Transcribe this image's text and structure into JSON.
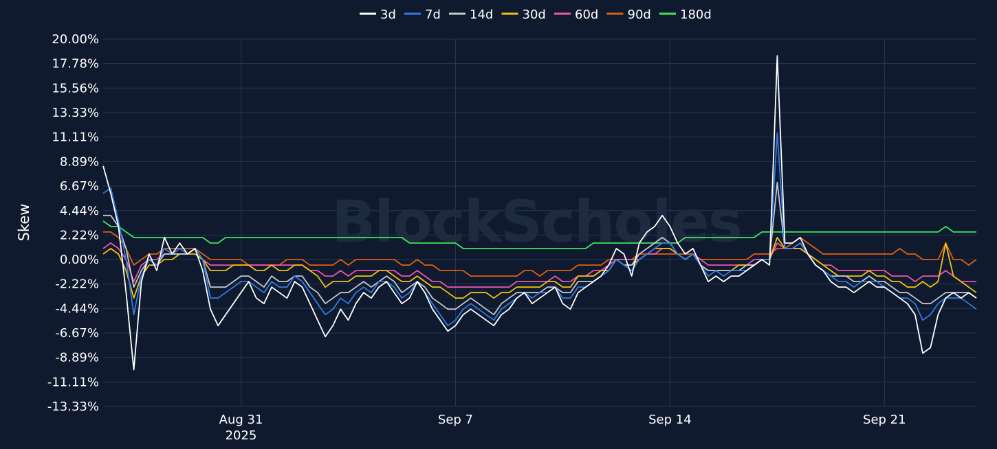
{
  "chart_data": {
    "type": "line",
    "ylabel": "Skew",
    "watermark": "BlockScholes",
    "ylim": [
      -13.33,
      20.0
    ],
    "xlim": [
      "2025-08-26T12:00",
      "2025-09-24T00:00"
    ],
    "yticks": [
      {
        "value": 20.0,
        "label": "20.00%"
      },
      {
        "value": 17.78,
        "label": "17.78%"
      },
      {
        "value": 15.56,
        "label": "15.56%"
      },
      {
        "value": 13.33,
        "label": "13.33%"
      },
      {
        "value": 11.11,
        "label": "11.11%"
      },
      {
        "value": 8.89,
        "label": "8.89%"
      },
      {
        "value": 6.67,
        "label": "6.67%"
      },
      {
        "value": 4.44,
        "label": "4.44%"
      },
      {
        "value": 2.22,
        "label": "2.22%"
      },
      {
        "value": 0.0,
        "label": "0.00%"
      },
      {
        "value": -2.22,
        "label": "-2.22%"
      },
      {
        "value": -4.44,
        "label": "-4.44%"
      },
      {
        "value": -6.67,
        "label": "-6.67%"
      },
      {
        "value": -8.89,
        "label": "-8.89%"
      },
      {
        "value": -11.11,
        "label": "-11.11%"
      },
      {
        "value": -13.33,
        "label": "-13.33%"
      }
    ],
    "xticks": [
      {
        "date": "2025-08-31",
        "label": "Aug 31",
        "sublabel": "2025"
      },
      {
        "date": "2025-09-07",
        "label": "Sep 7",
        "sublabel": ""
      },
      {
        "date": "2025-09-14",
        "label": "Sep 14",
        "sublabel": ""
      },
      {
        "date": "2025-09-21",
        "label": "Sep 21",
        "sublabel": ""
      }
    ],
    "grid": true,
    "legend_position": "top-center",
    "x": [
      "2025-08-26T12:00",
      "2025-08-26T18:00",
      "2025-08-27T00:00",
      "2025-08-27T06:00",
      "2025-08-27T12:00",
      "2025-08-27T18:00",
      "2025-08-28T00:00",
      "2025-08-28T06:00",
      "2025-08-28T12:00",
      "2025-08-28T18:00",
      "2025-08-29T00:00",
      "2025-08-29T06:00",
      "2025-08-29T12:00",
      "2025-08-29T18:00",
      "2025-08-30T00:00",
      "2025-08-30T06:00",
      "2025-08-30T12:00",
      "2025-08-30T18:00",
      "2025-08-31T00:00",
      "2025-08-31T06:00",
      "2025-08-31T12:00",
      "2025-08-31T18:00",
      "2025-09-01T00:00",
      "2025-09-01T06:00",
      "2025-09-01T12:00",
      "2025-09-01T18:00",
      "2025-09-02T00:00",
      "2025-09-02T06:00",
      "2025-09-02T12:00",
      "2025-09-02T18:00",
      "2025-09-03T00:00",
      "2025-09-03T06:00",
      "2025-09-03T12:00",
      "2025-09-03T18:00",
      "2025-09-04T00:00",
      "2025-09-04T06:00",
      "2025-09-04T12:00",
      "2025-09-04T18:00",
      "2025-09-05T00:00",
      "2025-09-05T06:00",
      "2025-09-05T12:00",
      "2025-09-05T18:00",
      "2025-09-06T00:00",
      "2025-09-06T06:00",
      "2025-09-06T12:00",
      "2025-09-06T18:00",
      "2025-09-07T00:00",
      "2025-09-07T06:00",
      "2025-09-07T12:00",
      "2025-09-07T18:00",
      "2025-09-08T00:00",
      "2025-09-08T06:00",
      "2025-09-08T12:00",
      "2025-09-08T18:00",
      "2025-09-09T00:00",
      "2025-09-09T06:00",
      "2025-09-09T12:00",
      "2025-09-09T18:00",
      "2025-09-10T00:00",
      "2025-09-10T06:00",
      "2025-09-10T12:00",
      "2025-09-10T18:00",
      "2025-09-11T00:00",
      "2025-09-11T06:00",
      "2025-09-11T12:00",
      "2025-09-11T18:00",
      "2025-09-12T00:00",
      "2025-09-12T06:00",
      "2025-09-12T12:00",
      "2025-09-12T18:00",
      "2025-09-13T00:00",
      "2025-09-13T06:00",
      "2025-09-13T12:00",
      "2025-09-13T18:00",
      "2025-09-14T00:00",
      "2025-09-14T06:00",
      "2025-09-14T12:00",
      "2025-09-14T18:00",
      "2025-09-15T00:00",
      "2025-09-15T06:00",
      "2025-09-15T12:00",
      "2025-09-15T18:00",
      "2025-09-16T00:00",
      "2025-09-16T06:00",
      "2025-09-16T12:00",
      "2025-09-16T18:00",
      "2025-09-17T00:00",
      "2025-09-17T06:00",
      "2025-09-17T12:00",
      "2025-09-17T18:00",
      "2025-09-18T00:00",
      "2025-09-18T06:00",
      "2025-09-18T12:00",
      "2025-09-18T18:00",
      "2025-09-19T00:00",
      "2025-09-19T06:00",
      "2025-09-19T12:00",
      "2025-09-19T18:00",
      "2025-09-20T00:00",
      "2025-09-20T06:00",
      "2025-09-20T12:00",
      "2025-09-20T18:00",
      "2025-09-21T00:00",
      "2025-09-21T06:00",
      "2025-09-21T12:00",
      "2025-09-21T18:00",
      "2025-09-22T00:00",
      "2025-09-22T06:00",
      "2025-09-22T12:00",
      "2025-09-22T18:00",
      "2025-09-23T00:00",
      "2025-09-23T06:00",
      "2025-09-23T12:00",
      "2025-09-23T18:00",
      "2025-09-24T00:00"
    ],
    "series": [
      {
        "name": "3d",
        "color": "#ffffff",
        "values": [
          8.5,
          6.0,
          3.0,
          -3.0,
          -10.0,
          -2.0,
          0.5,
          -1.0,
          2.0,
          0.5,
          1.5,
          0.5,
          1.0,
          -1.0,
          -4.5,
          -6.0,
          -5.0,
          -4.0,
          -3.0,
          -2.0,
          -3.5,
          -4.0,
          -2.5,
          -3.0,
          -3.5,
          -2.0,
          -2.5,
          -4.0,
          -5.5,
          -7.0,
          -6.0,
          -4.5,
          -5.5,
          -4.0,
          -3.0,
          -3.5,
          -2.5,
          -2.0,
          -3.0,
          -4.0,
          -3.5,
          -2.0,
          -3.0,
          -4.5,
          -5.5,
          -6.5,
          -6.0,
          -5.0,
          -4.5,
          -5.0,
          -5.5,
          -6.0,
          -5.0,
          -4.5,
          -3.5,
          -3.0,
          -4.0,
          -3.5,
          -3.0,
          -2.5,
          -4.0,
          -4.5,
          -3.0,
          -2.5,
          -2.0,
          -1.5,
          -0.5,
          1.0,
          0.5,
          -1.5,
          1.5,
          2.5,
          3.0,
          4.0,
          3.0,
          1.5,
          0.5,
          1.0,
          -0.5,
          -2.0,
          -1.5,
          -2.0,
          -1.5,
          -1.5,
          -1.0,
          -0.5,
          0.0,
          -0.5,
          18.5,
          1.5,
          1.5,
          2.0,
          0.5,
          -0.5,
          -1.0,
          -2.0,
          -2.5,
          -2.5,
          -3.0,
          -2.5,
          -2.0,
          -2.5,
          -2.5,
          -3.0,
          -3.5,
          -4.0,
          -5.0,
          -8.5,
          -8.0,
          -5.0,
          -3.5,
          -3.0,
          -3.5,
          -3.0,
          -3.5
        ]
      },
      {
        "name": "7d",
        "color": "#2f7be3",
        "values": [
          6.0,
          6.5,
          3.5,
          0.0,
          -5.0,
          -1.5,
          0.0,
          -0.5,
          1.0,
          0.5,
          1.0,
          0.5,
          1.0,
          0.0,
          -3.5,
          -3.5,
          -3.0,
          -2.5,
          -2.0,
          -2.0,
          -2.5,
          -3.0,
          -2.0,
          -2.5,
          -2.5,
          -1.5,
          -2.0,
          -3.0,
          -4.0,
          -5.0,
          -4.5,
          -3.5,
          -4.0,
          -3.0,
          -2.5,
          -3.0,
          -2.0,
          -2.0,
          -2.5,
          -3.5,
          -3.0,
          -2.0,
          -3.0,
          -4.0,
          -5.0,
          -6.0,
          -5.5,
          -4.5,
          -4.0,
          -4.5,
          -5.0,
          -5.5,
          -4.5,
          -4.0,
          -3.5,
          -3.0,
          -3.5,
          -3.0,
          -3.0,
          -2.5,
          -3.5,
          -3.5,
          -2.5,
          -2.5,
          -2.0,
          -1.5,
          -1.0,
          0.0,
          -0.5,
          -1.0,
          0.0,
          0.5,
          1.0,
          1.5,
          1.5,
          0.5,
          0.0,
          0.5,
          -0.5,
          -1.5,
          -1.0,
          -1.5,
          -1.0,
          -1.0,
          -1.0,
          -0.5,
          0.0,
          0.0,
          11.5,
          1.0,
          1.0,
          1.5,
          0.5,
          -0.5,
          -1.0,
          -1.5,
          -2.0,
          -2.0,
          -2.5,
          -2.0,
          -2.0,
          -2.0,
          -2.5,
          -3.0,
          -3.5,
          -3.5,
          -4.0,
          -5.5,
          -5.0,
          -4.0,
          -3.5,
          -3.5,
          -3.5,
          -4.0,
          -4.5
        ]
      },
      {
        "name": "14d",
        "color": "#c4c8d0",
        "values": [
          4.0,
          4.0,
          3.0,
          1.0,
          -2.5,
          -1.0,
          0.0,
          -0.5,
          0.5,
          0.5,
          0.5,
          0.5,
          1.0,
          0.0,
          -2.5,
          -2.5,
          -2.5,
          -2.0,
          -1.5,
          -1.5,
          -2.0,
          -2.5,
          -1.5,
          -2.0,
          -2.0,
          -1.5,
          -1.5,
          -2.5,
          -3.0,
          -4.0,
          -3.5,
          -3.0,
          -3.0,
          -2.5,
          -2.0,
          -2.5,
          -2.0,
          -1.5,
          -2.0,
          -3.0,
          -2.5,
          -2.0,
          -2.5,
          -3.5,
          -4.0,
          -4.5,
          -4.5,
          -4.0,
          -3.5,
          -4.0,
          -4.5,
          -5.0,
          -4.0,
          -3.5,
          -3.0,
          -3.0,
          -3.0,
          -3.0,
          -2.5,
          -2.5,
          -3.0,
          -3.0,
          -2.0,
          -2.0,
          -2.0,
          -1.5,
          -1.0,
          0.0,
          -0.5,
          -0.5,
          0.5,
          1.0,
          1.5,
          2.0,
          1.5,
          0.5,
          0.0,
          0.5,
          -0.5,
          -1.0,
          -1.0,
          -1.0,
          -1.0,
          -1.0,
          -0.5,
          -0.5,
          0.0,
          0.0,
          7.0,
          1.0,
          1.0,
          1.5,
          0.5,
          -0.5,
          -1.0,
          -1.5,
          -1.5,
          -1.5,
          -2.0,
          -2.0,
          -1.5,
          -2.0,
          -2.0,
          -2.5,
          -3.0,
          -3.0,
          -3.5,
          -4.0,
          -4.0,
          -3.5,
          -3.0,
          -3.0,
          -3.0,
          -3.0,
          -3.5
        ]
      },
      {
        "name": "30d",
        "color": "#f3c20e",
        "values": [
          0.5,
          1.0,
          0.5,
          -1.0,
          -3.5,
          -1.5,
          -0.5,
          -0.5,
          0.0,
          0.0,
          0.5,
          0.5,
          0.5,
          0.0,
          -1.0,
          -1.0,
          -1.0,
          -0.5,
          -0.5,
          -0.5,
          -1.0,
          -1.0,
          -0.5,
          -1.0,
          -1.0,
          -0.5,
          -0.5,
          -1.0,
          -1.5,
          -2.5,
          -2.0,
          -2.0,
          -2.0,
          -1.5,
          -1.5,
          -1.5,
          -1.0,
          -1.0,
          -1.5,
          -2.0,
          -2.0,
          -1.5,
          -2.0,
          -2.5,
          -2.5,
          -3.0,
          -3.5,
          -3.5,
          -3.0,
          -3.0,
          -3.0,
          -3.5,
          -3.0,
          -3.0,
          -2.5,
          -2.5,
          -2.5,
          -2.5,
          -2.0,
          -2.0,
          -2.5,
          -2.5,
          -1.5,
          -1.5,
          -1.5,
          -1.0,
          -1.0,
          0.0,
          -0.5,
          -0.5,
          0.0,
          0.5,
          1.0,
          1.0,
          1.0,
          0.5,
          0.0,
          0.5,
          -0.5,
          -1.0,
          -1.0,
          -1.0,
          -1.0,
          -0.5,
          -0.5,
          -0.5,
          0.0,
          0.0,
          2.0,
          1.0,
          1.0,
          1.0,
          0.5,
          0.0,
          -0.5,
          -1.0,
          -1.5,
          -1.5,
          -1.5,
          -1.5,
          -1.0,
          -1.5,
          -1.5,
          -2.0,
          -2.0,
          -2.5,
          -2.5,
          -2.0,
          -2.5,
          -2.0,
          1.5,
          -1.5,
          -2.0,
          -2.5,
          -3.0
        ]
      },
      {
        "name": "60d",
        "color": "#f054b0",
        "values": [
          1.0,
          1.5,
          1.0,
          0.0,
          -2.0,
          -0.5,
          0.0,
          0.0,
          0.5,
          0.5,
          0.5,
          0.5,
          1.0,
          0.0,
          -0.5,
          -0.5,
          -0.5,
          -0.5,
          -0.5,
          -0.5,
          -0.5,
          -0.5,
          -0.5,
          -0.5,
          -0.5,
          -0.5,
          -0.5,
          -1.0,
          -1.0,
          -1.5,
          -1.5,
          -1.0,
          -1.5,
          -1.0,
          -1.0,
          -1.0,
          -1.0,
          -1.0,
          -1.0,
          -1.5,
          -1.5,
          -1.0,
          -1.5,
          -2.0,
          -2.0,
          -2.5,
          -2.5,
          -2.5,
          -2.5,
          -2.5,
          -2.5,
          -2.5,
          -2.5,
          -2.5,
          -2.0,
          -2.0,
          -2.0,
          -2.0,
          -2.0,
          -1.5,
          -2.0,
          -2.0,
          -1.5,
          -1.5,
          -1.0,
          -1.0,
          -0.5,
          0.0,
          0.0,
          0.0,
          0.0,
          0.5,
          0.5,
          1.0,
          1.0,
          0.5,
          0.0,
          0.5,
          0.0,
          -0.5,
          -0.5,
          -0.5,
          -0.5,
          -0.5,
          -0.5,
          0.0,
          0.0,
          0.0,
          1.5,
          1.0,
          1.0,
          1.0,
          0.5,
          0.0,
          -0.5,
          -0.5,
          -1.0,
          -1.0,
          -1.0,
          -1.0,
          -1.0,
          -1.0,
          -1.0,
          -1.5,
          -1.5,
          -1.5,
          -2.0,
          -1.5,
          -1.5,
          -1.5,
          -1.0,
          -1.5,
          -2.0,
          -2.0,
          -2.0
        ]
      },
      {
        "name": "90d",
        "color": "#e05f0f",
        "values": [
          2.5,
          2.5,
          2.0,
          1.0,
          -0.5,
          0.0,
          0.5,
          0.5,
          1.0,
          1.0,
          1.0,
          1.0,
          1.0,
          0.5,
          0.0,
          0.0,
          0.0,
          0.0,
          0.0,
          -0.5,
          -0.5,
          -0.5,
          -0.5,
          -0.5,
          0.0,
          0.0,
          0.0,
          -0.5,
          -0.5,
          -0.5,
          -0.5,
          0.0,
          -0.5,
          0.0,
          0.0,
          0.0,
          0.0,
          0.0,
          0.0,
          -0.5,
          -0.5,
          0.0,
          -0.5,
          -0.5,
          -1.0,
          -1.0,
          -1.0,
          -1.0,
          -1.5,
          -1.5,
          -1.5,
          -1.5,
          -1.5,
          -1.5,
          -1.5,
          -1.0,
          -1.0,
          -1.5,
          -1.0,
          -1.0,
          -1.0,
          -1.0,
          -0.5,
          -0.5,
          -0.5,
          -0.5,
          0.0,
          0.0,
          0.0,
          0.0,
          0.5,
          0.5,
          0.5,
          0.5,
          0.5,
          0.5,
          0.5,
          0.5,
          0.0,
          0.0,
          0.0,
          0.0,
          0.0,
          0.0,
          0.0,
          0.5,
          0.5,
          0.5,
          1.0,
          1.0,
          1.5,
          2.0,
          1.5,
          1.0,
          0.5,
          0.5,
          0.5,
          0.5,
          0.5,
          0.5,
          0.5,
          0.5,
          0.5,
          0.5,
          1.0,
          0.5,
          0.5,
          0.0,
          0.0,
          0.0,
          1.5,
          0.0,
          0.0,
          -0.5,
          0.0
        ]
      },
      {
        "name": "180d",
        "color": "#3fe65a",
        "values": [
          3.5,
          3.0,
          3.0,
          2.5,
          2.0,
          2.0,
          2.0,
          2.0,
          2.0,
          2.0,
          2.0,
          2.0,
          2.0,
          2.0,
          1.5,
          1.5,
          2.0,
          2.0,
          2.0,
          2.0,
          2.0,
          2.0,
          2.0,
          2.0,
          2.0,
          2.0,
          2.0,
          2.0,
          2.0,
          2.0,
          2.0,
          2.0,
          2.0,
          2.0,
          2.0,
          2.0,
          2.0,
          2.0,
          2.0,
          2.0,
          1.5,
          1.5,
          1.5,
          1.5,
          1.5,
          1.5,
          1.5,
          1.0,
          1.0,
          1.0,
          1.0,
          1.0,
          1.0,
          1.0,
          1.0,
          1.0,
          1.0,
          1.0,
          1.0,
          1.0,
          1.0,
          1.0,
          1.0,
          1.0,
          1.5,
          1.5,
          1.5,
          1.5,
          1.5,
          1.5,
          1.5,
          1.5,
          1.5,
          1.5,
          1.5,
          1.5,
          2.0,
          2.0,
          2.0,
          2.0,
          2.0,
          2.0,
          2.0,
          2.0,
          2.0,
          2.0,
          2.5,
          2.5,
          2.5,
          2.5,
          2.5,
          2.5,
          2.5,
          2.5,
          2.5,
          2.5,
          2.5,
          2.5,
          2.5,
          2.5,
          2.5,
          2.5,
          2.5,
          2.5,
          2.5,
          2.5,
          2.5,
          2.5,
          2.5,
          2.5,
          3.0,
          2.5,
          2.5,
          2.5,
          2.5
        ]
      }
    ]
  }
}
